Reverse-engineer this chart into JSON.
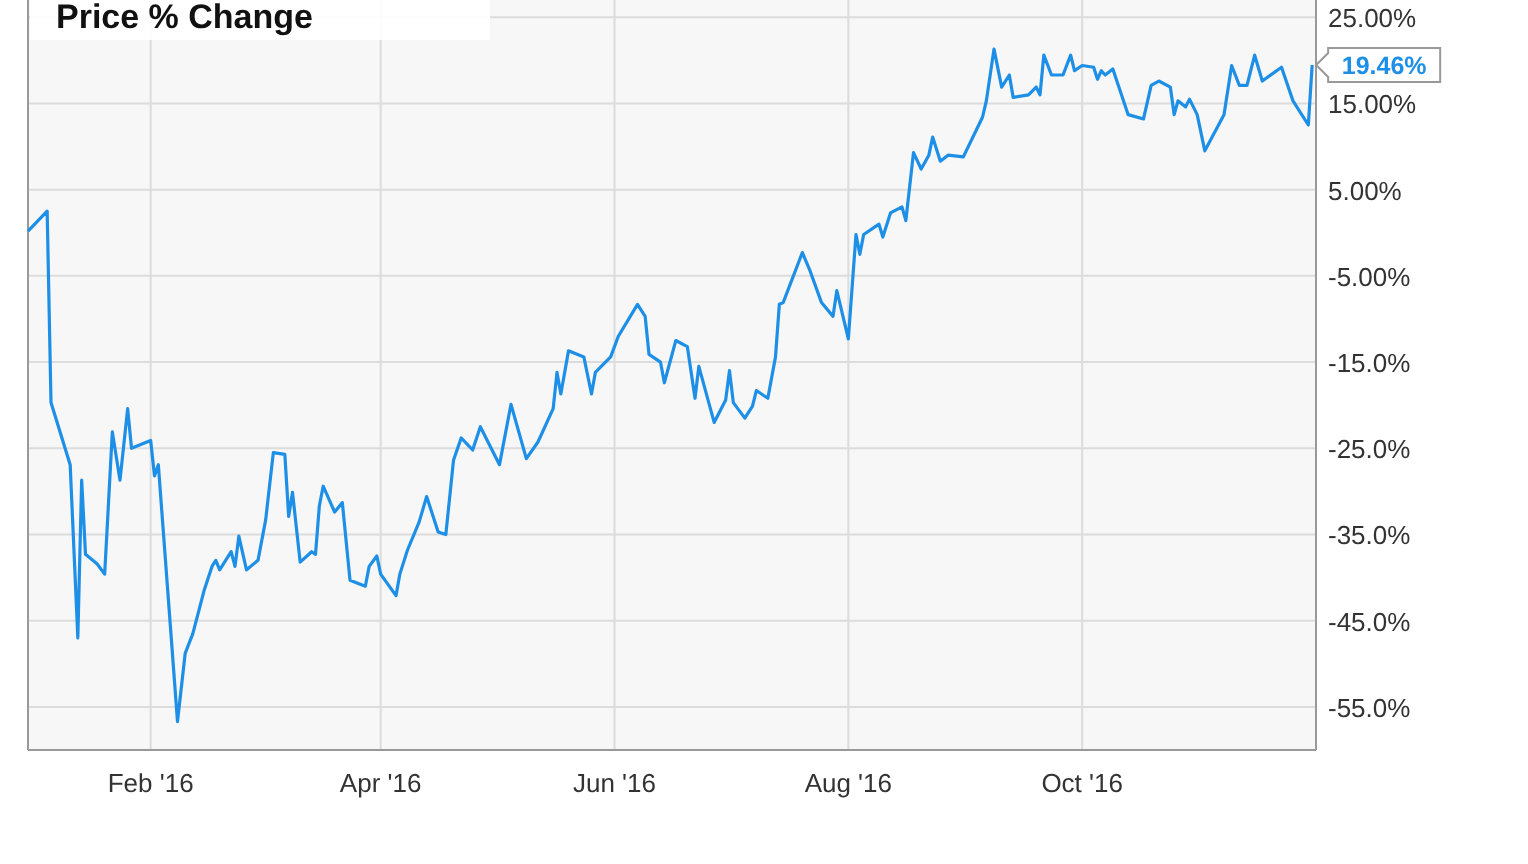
{
  "chart_data": {
    "type": "line",
    "title": "Price % Change",
    "xlim": [
      "2015-12-31",
      "2016-12-01"
    ],
    "xticks": [
      {
        "value": "2016-02-01",
        "label": "Feb '16"
      },
      {
        "value": "2016-04-01",
        "label": "Apr '16"
      },
      {
        "value": "2016-06-01",
        "label": "Jun '16"
      },
      {
        "value": "2016-08-01",
        "label": "Aug '16"
      },
      {
        "value": "2016-10-01",
        "label": "Oct '16"
      }
    ],
    "ylim": [
      -60,
      27
    ],
    "yticks": [
      {
        "value": -55,
        "label": "-55.0%"
      },
      {
        "value": -45,
        "label": "-45.0%"
      },
      {
        "value": -35,
        "label": "-35.0%"
      },
      {
        "value": -25,
        "label": "-25.0%"
      },
      {
        "value": -15,
        "label": "-15.0%"
      },
      {
        "value": -5,
        "label": "-5.00%"
      },
      {
        "value": 5,
        "label": "5.00%"
      },
      {
        "value": 15,
        "label": "15.00%"
      },
      {
        "value": 25,
        "label": "25.00%"
      }
    ],
    "grid": true,
    "x": [
      "2015-12-31",
      "2016-01-05",
      "2016-01-06",
      "2016-01-11",
      "2016-01-13",
      "2016-01-14",
      "2016-01-15",
      "2016-01-18",
      "2016-01-20",
      "2016-01-22",
      "2016-01-24",
      "2016-01-26",
      "2016-01-27",
      "2016-02-01",
      "2016-02-02",
      "2016-02-03",
      "2016-02-08",
      "2016-02-10",
      "2016-02-12",
      "2016-02-15",
      "2016-02-17",
      "2016-02-18",
      "2016-02-19",
      "2016-02-22",
      "2016-02-23",
      "2016-02-24",
      "2016-02-26",
      "2016-02-29",
      "2016-03-02",
      "2016-03-04",
      "2016-03-07",
      "2016-03-08",
      "2016-03-09",
      "2016-03-11",
      "2016-03-14",
      "2016-03-15",
      "2016-03-16",
      "2016-03-17",
      "2016-03-20",
      "2016-03-22",
      "2016-03-24",
      "2016-03-28",
      "2016-03-29",
      "2016-03-31",
      "2016-04-01",
      "2016-04-05",
      "2016-04-06",
      "2016-04-08",
      "2016-04-11",
      "2016-04-13",
      "2016-04-16",
      "2016-04-18",
      "2016-04-20",
      "2016-04-22",
      "2016-04-25",
      "2016-04-27",
      "2016-05-02",
      "2016-05-05",
      "2016-05-09",
      "2016-05-12",
      "2016-05-16",
      "2016-05-17",
      "2016-05-18",
      "2016-05-20",
      "2016-05-24",
      "2016-05-26",
      "2016-05-27",
      "2016-05-31",
      "2016-06-02",
      "2016-06-07",
      "2016-06-09",
      "2016-06-10",
      "2016-06-13",
      "2016-06-14",
      "2016-06-17",
      "2016-06-20",
      "2016-06-22",
      "2016-06-23",
      "2016-06-27",
      "2016-06-30",
      "2016-07-01",
      "2016-07-02",
      "2016-07-05",
      "2016-07-07",
      "2016-07-08",
      "2016-07-11",
      "2016-07-13",
      "2016-07-14",
      "2016-07-15",
      "2016-07-20",
      "2016-07-22",
      "2016-07-25",
      "2016-07-28",
      "2016-07-29",
      "2016-08-01",
      "2016-08-03",
      "2016-08-04",
      "2016-08-05",
      "2016-08-09",
      "2016-08-10",
      "2016-08-12",
      "2016-08-15",
      "2016-08-16",
      "2016-08-18",
      "2016-08-20",
      "2016-08-22",
      "2016-08-23",
      "2016-08-25",
      "2016-08-27",
      "2016-08-31",
      "2016-09-05",
      "2016-09-06",
      "2016-09-08",
      "2016-09-10",
      "2016-09-12",
      "2016-09-13",
      "2016-09-17",
      "2016-09-19",
      "2016-09-20",
      "2016-09-21",
      "2016-09-23",
      "2016-09-26",
      "2016-09-28",
      "2016-09-29",
      "2016-10-01",
      "2016-10-04",
      "2016-10-05",
      "2016-10-06",
      "2016-10-07",
      "2016-10-09",
      "2016-10-13",
      "2016-10-17",
      "2016-10-19",
      "2016-10-21",
      "2016-10-24",
      "2016-10-25",
      "2016-10-26",
      "2016-10-28",
      "2016-10-29",
      "2016-10-31",
      "2016-11-02",
      "2016-11-07",
      "2016-11-09",
      "2016-11-11",
      "2016-11-13",
      "2016-11-15",
      "2016-11-17",
      "2016-11-22",
      "2016-11-25",
      "2016-11-29",
      "2016-11-30"
    ],
    "series": [
      {
        "color": "#1e8fe6",
        "values": [
          0.2,
          2.5,
          -19.7,
          -26.9,
          -47,
          -28.7,
          -37.3,
          -38.4,
          -39.6,
          -23.1,
          -28.7,
          -20.4,
          -25,
          -24.1,
          -28.2,
          -26.9,
          -56.7,
          -48.8,
          -46.5,
          -41.4,
          -38.7,
          -38,
          -39.1,
          -37,
          -38.7,
          -35.2,
          -39.1,
          -38,
          -33.3,
          -25.5,
          -25.7,
          -32.9,
          -30.1,
          -38.2,
          -37,
          -37.3,
          -31.7,
          -29.4,
          -32.4,
          -31.3,
          -40.3,
          -41,
          -38.7,
          -37.5,
          -39.6,
          -42.1,
          -39.6,
          -36.8,
          -33.6,
          -30.6,
          -34.7,
          -35,
          -26.4,
          -23.8,
          -25.2,
          -22.5,
          -26.9,
          -19.9,
          -26.2,
          -24.3,
          -20.4,
          -16.2,
          -18.7,
          -13.7,
          -14.4,
          -18.7,
          -16.2,
          -14.4,
          -12,
          -8.3,
          -9.7,
          -14.1,
          -15,
          -17.4,
          -12.5,
          -13.2,
          -19.2,
          -15.5,
          -22,
          -19.4,
          -16,
          -19.7,
          -21.5,
          -20.1,
          -18.3,
          -19.2,
          -14.4,
          -8.3,
          -8.1,
          -2.3,
          -4.4,
          -8.1,
          -9.7,
          -6.7,
          -12.3,
          -0.2,
          -2.5,
          -0.2,
          1,
          -0.5,
          2.3,
          3,
          1.4,
          9.3,
          7.4,
          9,
          11.1,
          8.3,
          9,
          8.8,
          13.4,
          15.3,
          21.3,
          16.9,
          18.3,
          15.7,
          16,
          16.9,
          16,
          20.6,
          18.3,
          18.3,
          20.6,
          18.8,
          19.4,
          19.2,
          17.8,
          18.8,
          18.3,
          19,
          13.7,
          13.2,
          17.1,
          17.6,
          16.9,
          13.7,
          15.3,
          14.6,
          15.5,
          13.7,
          9.5,
          13.7,
          19.4,
          17.1,
          17.1,
          20.6,
          17.6,
          19.2,
          15.3,
          12.5,
          19.46
        ],
        "value_labels": [
          null,
          null,
          null,
          null,
          null,
          null,
          null,
          null,
          null,
          null,
          null,
          null,
          null,
          null,
          null,
          null,
          null,
          null,
          null,
          null,
          null,
          null,
          null,
          null,
          null,
          null,
          null,
          null,
          null,
          null,
          null,
          null,
          null,
          null,
          null,
          null,
          null,
          null,
          null,
          null,
          null,
          null,
          null,
          null,
          null,
          null,
          null,
          null,
          null,
          null,
          null,
          null,
          null,
          null,
          null,
          null,
          null,
          null,
          null,
          null,
          null,
          null,
          null,
          null,
          null,
          null,
          null,
          null,
          null,
          null,
          null,
          null,
          null,
          null,
          null,
          null,
          null,
          null,
          null,
          null,
          null,
          null,
          null,
          null,
          null,
          null,
          null,
          null,
          null,
          null,
          null,
          null,
          null,
          null,
          null,
          null,
          null,
          null,
          null,
          null,
          null,
          null,
          null,
          null,
          null,
          null,
          null,
          null,
          null,
          null,
          null,
          null,
          null,
          null,
          null,
          null,
          null,
          null,
          null,
          null,
          null,
          null,
          null,
          null,
          null,
          null,
          null,
          null,
          null,
          null,
          null,
          null,
          null,
          null,
          null,
          null,
          null,
          null,
          null,
          null,
          null,
          null,
          null,
          null,
          null,
          null,
          null,
          null,
          null,
          null,
          "19.46%"
        ]
      }
    ]
  }
}
